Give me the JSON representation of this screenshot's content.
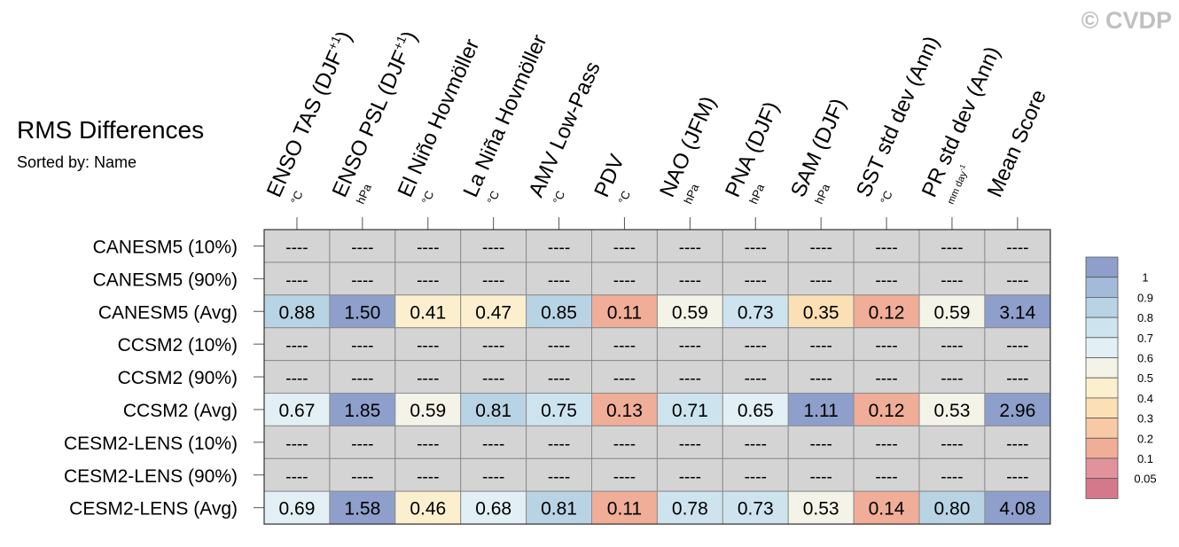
{
  "watermark": "© CVDP",
  "title": "RMS Differences",
  "subtitle": "Sorted by: Name",
  "chart_data": {
    "type": "heatmap",
    "columns": [
      {
        "label": "ENSO TAS (DJF",
        "sup": "+1",
        "close": ")",
        "unit": "°C"
      },
      {
        "label": "ENSO PSL (DJF",
        "sup": "+1",
        "close": ")",
        "unit": "hPa"
      },
      {
        "label": "El Niño Hovmöller",
        "sup": "",
        "close": "",
        "unit": "°C"
      },
      {
        "label": "La Niña Hovmöller",
        "sup": "",
        "close": "",
        "unit": "°C"
      },
      {
        "label": "AMV Low-Pass",
        "sup": "",
        "close": "",
        "unit": "°C"
      },
      {
        "label": "PDV",
        "sup": "",
        "close": "",
        "unit": "°C"
      },
      {
        "label": "NAO (JFM)",
        "sup": "",
        "close": "",
        "unit": "hPa"
      },
      {
        "label": "PNA (DJF)",
        "sup": "",
        "close": "",
        "unit": "hPa"
      },
      {
        "label": "SAM (DJF)",
        "sup": "",
        "close": "",
        "unit": "hPa"
      },
      {
        "label": "SST std dev (Ann)",
        "sup": "",
        "close": "",
        "unit": "°C"
      },
      {
        "label": "PR std dev (Ann)",
        "sup": "",
        "close": "",
        "unit": "mm day",
        "unit_sup": "-1"
      },
      {
        "label": "Mean Score",
        "sup": "",
        "close": "",
        "unit": ""
      }
    ],
    "rows": [
      {
        "label": "CANESM5 (10%)",
        "values": [
          "----",
          "----",
          "----",
          "----",
          "----",
          "----",
          "----",
          "----",
          "----",
          "----",
          "----",
          "----"
        ]
      },
      {
        "label": "CANESM5 (90%)",
        "values": [
          "----",
          "----",
          "----",
          "----",
          "----",
          "----",
          "----",
          "----",
          "----",
          "----",
          "----",
          "----"
        ]
      },
      {
        "label": "CANESM5 (Avg)",
        "values": [
          "0.88",
          "1.50",
          "0.41",
          "0.47",
          "0.85",
          "0.11",
          "0.59",
          "0.73",
          "0.35",
          "0.12",
          "0.59",
          "3.14"
        ]
      },
      {
        "label": "CCSM2 (10%)",
        "values": [
          "----",
          "----",
          "----",
          "----",
          "----",
          "----",
          "----",
          "----",
          "----",
          "----",
          "----",
          "----"
        ]
      },
      {
        "label": "CCSM2 (90%)",
        "values": [
          "----",
          "----",
          "----",
          "----",
          "----",
          "----",
          "----",
          "----",
          "----",
          "----",
          "----",
          "----"
        ]
      },
      {
        "label": "CCSM2 (Avg)",
        "values": [
          "0.67",
          "1.85",
          "0.59",
          "0.81",
          "0.75",
          "0.13",
          "0.71",
          "0.65",
          "1.11",
          "0.12",
          "0.53",
          "2.96"
        ]
      },
      {
        "label": "CESM2-LENS (10%)",
        "values": [
          "----",
          "----",
          "----",
          "----",
          "----",
          "----",
          "----",
          "----",
          "----",
          "----",
          "----",
          "----"
        ]
      },
      {
        "label": "CESM2-LENS (90%)",
        "values": [
          "----",
          "----",
          "----",
          "----",
          "----",
          "----",
          "----",
          "----",
          "----",
          "----",
          "----",
          "----"
        ]
      },
      {
        "label": "CESM2-LENS (Avg)",
        "values": [
          "0.69",
          "1.58",
          "0.46",
          "0.68",
          "0.81",
          "0.11",
          "0.78",
          "0.73",
          "0.53",
          "0.14",
          "0.80",
          "4.08"
        ]
      }
    ],
    "missing_color": "#d4d4d4",
    "colorbar": {
      "labels": [
        "1",
        "0.9",
        "0.8",
        "0.7",
        "0.6",
        "0.5",
        "0.4",
        "0.3",
        "0.2",
        "0.1",
        "0.05"
      ],
      "colors": [
        "#8e9fcb",
        "#a3bbd8",
        "#b8d3e4",
        "#cde4ee",
        "#e2eff4",
        "#f3f3e8",
        "#fbefce",
        "#fbe0b5",
        "#f7c9a4",
        "#f0ad98",
        "#e0939a",
        "#d6788b"
      ],
      "thresholds": [
        1.0,
        0.9,
        0.8,
        0.7,
        0.6,
        0.5,
        0.4,
        0.3,
        0.2,
        0.1,
        0.05
      ]
    }
  }
}
